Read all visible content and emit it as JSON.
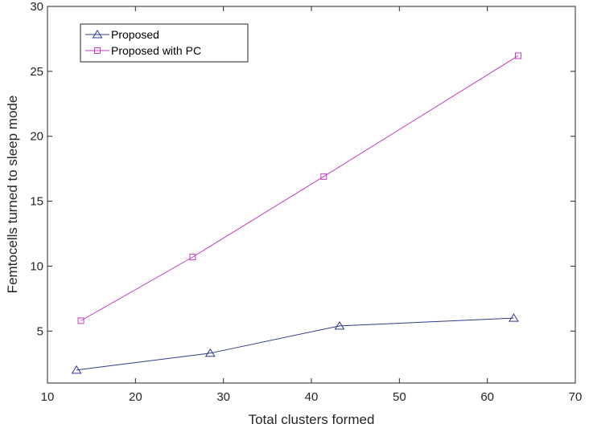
{
  "chart_data": {
    "type": "line",
    "title": "",
    "xlabel": "Total clusters formed",
    "ylabel": "Femtocells turned to sleep mode",
    "xlim": [
      10,
      70
    ],
    "ylim": [
      1,
      30
    ],
    "xticks": [
      10,
      20,
      30,
      40,
      50,
      60,
      70
    ],
    "yticks": [
      5,
      10,
      15,
      20,
      25,
      30
    ],
    "grid": false,
    "legend_position": "top-left",
    "series": [
      {
        "name": "Proposed",
        "color": "#2e3a87",
        "marker": "triangle",
        "x": [
          13.3,
          28.5,
          43.2,
          63.0
        ],
        "y": [
          2.0,
          3.3,
          5.4,
          6.0
        ]
      },
      {
        "name": "Proposed with PC",
        "color": "#c33cbe",
        "marker": "square",
        "x": [
          13.8,
          26.5,
          41.4,
          63.5
        ],
        "y": [
          5.8,
          10.7,
          16.9,
          26.2
        ]
      }
    ]
  }
}
